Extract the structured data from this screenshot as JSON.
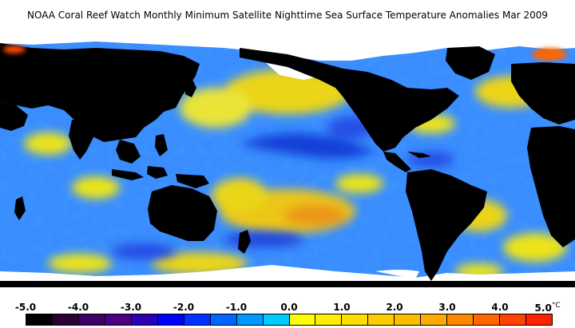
{
  "title": "NOAA Coral Reef Watch Monthly Minimum Satellite Nighttime Sea Surface Temperature Anomalies   Mar 2009",
  "colorbar": {
    "unit": "°C",
    "tick_labels": [
      "-5.0",
      "-4.0",
      "-3.0",
      "-2.0",
      "-1.0",
      "0.0",
      "1.0",
      "2.0",
      "3.0",
      "4.0",
      "5.0"
    ],
    "colors": [
      "#000000",
      "#2a0033",
      "#3d0066",
      "#4b0082",
      "#2b00b3",
      "#0000ff",
      "#0033ff",
      "#0066ff",
      "#0099ff",
      "#00ccff",
      "#ffff00",
      "#ffee00",
      "#ffdd00",
      "#ffcc00",
      "#ffbb00",
      "#ffaa00",
      "#ff8800",
      "#ff6600",
      "#ff4400",
      "#ff2200"
    ]
  },
  "legend": {
    "land": "black",
    "ice": "white",
    "ocean_base": "#3a8cff"
  }
}
